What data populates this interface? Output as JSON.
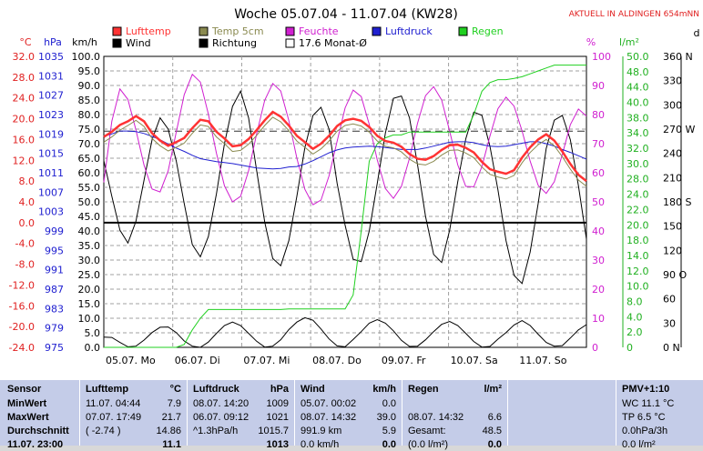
{
  "title": "Woche 05.07.04 - 11.07.04 (KW28)",
  "station": "AKTUELL IN ALDINGEN 654mNN",
  "legend": [
    {
      "label": "Lufttemp",
      "color": "#ff3333"
    },
    {
      "label": "Temp 5cm",
      "color": "#8a8a50"
    },
    {
      "label": "Feuchte",
      "color": "#d020d0"
    },
    {
      "label": "Luftdruck",
      "color": "#2020d0"
    },
    {
      "label": "Regen",
      "color": "#20d020"
    },
    {
      "label": "Wind",
      "color": "#000000"
    },
    {
      "label": "Richtung",
      "color": "#000000"
    },
    {
      "label": "17.6 Monat-Ø",
      "color": "#ffffff"
    }
  ],
  "axis_units": {
    "temp": "°C",
    "pressure": "hPa",
    "wind": "km/h",
    "humidity": "%",
    "rain": "l/m²",
    "direction": "d"
  },
  "chart_data": {
    "type": "line",
    "x_labels": [
      "05.07. Mo",
      "06.07. Di",
      "07.07. Mi",
      "08.07. Do",
      "09.07. Fr",
      "10.07. Sa",
      "11.07. So"
    ],
    "temp_ticks": [
      "32.0",
      "28.0",
      "24.0",
      "20.0",
      "16.0",
      "12.0",
      "8.0",
      "4.0",
      "0.0",
      "-4.0",
      "-8.0",
      "-12.0",
      "-16.0",
      "-20.0",
      "-24.0"
    ],
    "pressure_ticks": [
      "1035",
      "1031",
      "1027",
      "1023",
      "1019",
      "1015",
      "1011",
      "1007",
      "1003",
      "999",
      "995",
      "991",
      "987",
      "983",
      "979",
      "975"
    ],
    "wind_ticks": [
      "100.0",
      "95.0",
      "90.0",
      "85.0",
      "80.0",
      "75.0",
      "70.0",
      "65.0",
      "60.0",
      "55.0",
      "50.0",
      "45.0",
      "40.0",
      "35.0",
      "30.0",
      "25.0",
      "20.0",
      "15.0",
      "10.0",
      "5.0",
      "0.0"
    ],
    "humidity_ticks": [
      "100",
      "90",
      "80",
      "70",
      "60",
      "50",
      "40",
      "30",
      "20",
      "10",
      "0"
    ],
    "rain_ticks": [
      "50.0",
      "48.0",
      "44.0",
      "40.0",
      "38.0",
      "34.0",
      "32.0",
      "30.0",
      "28.0",
      "24.0",
      "22.0",
      "20.0",
      "18.0",
      "14.0",
      "12.0",
      "10.0",
      "8.0",
      "4.0",
      "2.0",
      "0"
    ],
    "direction_ticks": [
      "360 N",
      "330",
      "300",
      "270 W",
      "240",
      "210",
      "180 S",
      "150",
      "120",
      "90 O",
      "60",
      "30",
      "0 N"
    ],
    "wind_ylim": [
      0,
      100
    ],
    "temp_ylim": [
      -24,
      32
    ],
    "pressure_ylim": [
      975,
      1035
    ],
    "humidity_ylim": [
      0,
      100
    ],
    "rain_ylim": [
      0,
      50
    ],
    "lufttemp": [
      16.5,
      17.5,
      18.8,
      19.5,
      20.5,
      19.5,
      17.2,
      15.8,
      14.8,
      15.5,
      16.3,
      18.2,
      19.8,
      19.5,
      17.5,
      16.2,
      14.7,
      14.9,
      16.1,
      17.8,
      19.7,
      21.3,
      20.4,
      18.7,
      16.7,
      15.5,
      14.2,
      15.2,
      16.7,
      18.6,
      19.7,
      20.0,
      19.6,
      18.4,
      16.7,
      15.7,
      15.4,
      14.6,
      13.2,
      12.3,
      12.1,
      12.8,
      14.0,
      14.9,
      15.0,
      14.4,
      13.5,
      11.7,
      10.3,
      9.8,
      9.4,
      10.1,
      12.5,
      14.5,
      16.0,
      17.0,
      15.8,
      13.7,
      11.3,
      9.2,
      8.0
    ],
    "temp5cm": [
      15.5,
      16.5,
      17.8,
      18.7,
      19.7,
      18.5,
      16.2,
      14.8,
      13.8,
      14.5,
      15.3,
      17.2,
      18.8,
      18.5,
      16.5,
      15.2,
      13.7,
      13.9,
      15.1,
      16.8,
      18.7,
      20.3,
      19.4,
      17.7,
      15.7,
      14.5,
      13.2,
      14.2,
      15.7,
      17.6,
      18.7,
      19.0,
      18.6,
      17.4,
      15.7,
      14.7,
      14.4,
      13.6,
      12.2,
      11.3,
      11.1,
      11.8,
      13.0,
      13.9,
      14.0,
      13.4,
      12.5,
      10.7,
      9.3,
      8.8,
      8.4,
      9.1,
      11.5,
      13.5,
      15.0,
      16.0,
      14.8,
      12.7,
      10.3,
      8.2,
      7.0
    ],
    "luftdruck": [
      1018.5,
      1019.0,
      1019.6,
      1019.6,
      1019.5,
      1019.1,
      1018.5,
      1017.8,
      1016.9,
      1016.1,
      1015.4,
      1014.6,
      1013.9,
      1013.6,
      1013.3,
      1013.1,
      1012.9,
      1012.6,
      1012.3,
      1012.0,
      1011.9,
      1011.8,
      1011.9,
      1012.2,
      1012.3,
      1012.8,
      1013.5,
      1014.3,
      1015.1,
      1015.7,
      1016.1,
      1016.3,
      1016.4,
      1016.5,
      1016.4,
      1016.2,
      1016.0,
      1015.8,
      1015.8,
      1015.8,
      1016.1,
      1016.5,
      1016.9,
      1017.3,
      1017.4,
      1017.4,
      1017.2,
      1016.8,
      1016.5,
      1016.4,
      1016.5,
      1016.8,
      1017.1,
      1017.4,
      1017.4,
      1017.0,
      1016.5,
      1015.8,
      1015.2,
      1014.5,
      1013.8
    ],
    "feuchte": [
      56.7,
      77.7,
      88.8,
      85.2,
      74.7,
      62.6,
      54.4,
      53.4,
      60.7,
      73.9,
      86.8,
      93.8,
      91.2,
      80.2,
      66.7,
      55.5,
      50.0,
      51.9,
      60.7,
      73.3,
      84.9,
      90.7,
      88.1,
      77.9,
      65.0,
      54.3,
      49.0,
      50.6,
      58.9,
      70.8,
      82.3,
      88.4,
      86.2,
      76.6,
      64.4,
      54.6,
      51.2,
      55.3,
      65.0,
      77.0,
      86.5,
      89.6,
      85.0,
      74.3,
      62.7,
      55.3,
      55.2,
      62.1,
      72.6,
      82.0,
      86.0,
      82.9,
      74.4,
      64.0,
      55.7,
      52.9,
      56.9,
      66.3,
      76.5,
      81.9,
      79.5
    ],
    "regen": [
      0,
      0,
      0,
      0,
      0,
      0,
      0,
      0,
      0,
      0,
      0.5,
      3.0,
      5.0,
      6.5,
      6.5,
      6.5,
      6.5,
      6.5,
      6.5,
      6.5,
      6.5,
      6.5,
      6.5,
      6.6,
      6.6,
      6.6,
      6.6,
      6.6,
      6.6,
      6.6,
      6.6,
      9.0,
      20.0,
      32.0,
      35.0,
      36.0,
      36.5,
      36.5,
      37.0,
      37.0,
      37.0,
      37.0,
      37.0,
      37.0,
      37.0,
      37.0,
      40.0,
      44.0,
      45.5,
      46.0,
      46.0,
      46.2,
      46.5,
      47.0,
      47.5,
      48.0,
      48.5,
      48.5,
      48.5,
      48.5,
      48.5
    ],
    "wind": [
      3.5,
      3.4,
      1.7,
      0.2,
      0.4,
      2.5,
      5.1,
      6.9,
      7.0,
      5.1,
      2.2,
      0.4,
      0.0,
      1.8,
      4.8,
      7.5,
      8.7,
      7.5,
      4.8,
      2.1,
      0.1,
      0.4,
      2.6,
      6.1,
      8.7,
      10.2,
      9.3,
      6.3,
      2.9,
      0.5,
      0.2,
      2.7,
      5.4,
      8.3,
      9.5,
      8.3,
      5.7,
      2.4,
      0.3,
      0.4,
      2.6,
      5.4,
      7.9,
      8.9,
      7.5,
      4.8,
      2.0,
      0.1,
      0.3,
      2.8,
      5.1,
      7.7,
      9.2,
      7.5,
      4.5,
      1.7,
      0.4,
      0.6,
      3.2,
      6.0,
      7.8
    ],
    "richtung": [
      231,
      187,
      145,
      129,
      156,
      207,
      257,
      284,
      270,
      231,
      178,
      127,
      112,
      137,
      190,
      252,
      298,
      317,
      284,
      219,
      155,
      110,
      101,
      132,
      187,
      247,
      287,
      297,
      270,
      203,
      151,
      109,
      106,
      144,
      203,
      265,
      308,
      311,
      284,
      226,
      162,
      115,
      105,
      145,
      205,
      258,
      291,
      287,
      249,
      195,
      132,
      89,
      79,
      118,
      178,
      246,
      281,
      287,
      257,
      200,
      134
    ],
    "monat_avg": 17.6
  },
  "table": {
    "col_sensor": {
      "header": "Sensor",
      "rows": [
        "MinWert",
        "MaxWert",
        "Durchschnitt",
        "11.07. 23:00"
      ]
    },
    "col_lufttemp": {
      "header": "Lufttemp",
      "unit": "°C",
      "rows": [
        [
          "11.07.  04:44",
          "7.9"
        ],
        [
          "07.07.  17:49",
          "21.7"
        ],
        [
          "( -2.74 )",
          "14.86"
        ],
        [
          "",
          "11.1"
        ]
      ]
    },
    "col_luftdruck": {
      "header": "Luftdruck",
      "unit": "hPa",
      "rows": [
        [
          "08.07.  14:20",
          "1009"
        ],
        [
          "06.07.  09:12",
          "1021"
        ],
        [
          "^1.3hPa/h",
          "1015.7"
        ],
        [
          "",
          "1013"
        ]
      ]
    },
    "col_wind": {
      "header": "Wind",
      "unit": "km/h",
      "rows": [
        [
          "05.07.  00:02",
          "0.0"
        ],
        [
          "08.07.  14:32",
          "39.0"
        ],
        [
          "991.9 km",
          "5.9"
        ],
        [
          "0.0 km/h",
          "0.0"
        ]
      ]
    },
    "col_regen": {
      "header": "Regen",
      "unit": "l/m²",
      "rows": [
        [
          "",
          ""
        ],
        [
          "08.07.  14:32",
          "6.6"
        ],
        [
          "Gesamt:",
          "48.5"
        ],
        [
          "(0.0 l/m²)",
          "0.0"
        ]
      ]
    },
    "col_pmv": {
      "header": "PMV+1:10",
      "rows": [
        "WC 11.1 °C",
        "TP 6.5 °C",
        "0.0hPa/3h",
        "0.0 l/m²"
      ]
    }
  }
}
